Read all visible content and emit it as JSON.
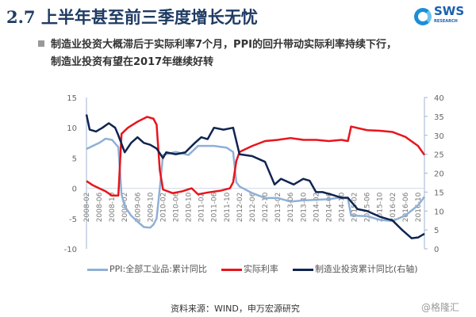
{
  "header": {
    "title": "2.7 上半年甚至前三季度增长无忧",
    "logo_text": "SWS",
    "logo_sub": "RESEARCH"
  },
  "bullet": {
    "line1": "制造业投资大概滞后于实际利率7个月，PPI的回升带动实际利率持续下行，",
    "line2": "制造业投资有望在2017年继续好转"
  },
  "footer": {
    "source": "资料来源：WIND，申万宏源研究",
    "watermark": "@格隆汇"
  },
  "chart_data": {
    "type": "line",
    "grid": false,
    "legend_position": "bottom",
    "y_left": {
      "range": [
        -10,
        15
      ],
      "ticks": [
        -10,
        -5,
        0,
        5,
        10,
        15
      ]
    },
    "y_right": {
      "range": [
        0,
        40
      ],
      "ticks": [
        0,
        5,
        10,
        15,
        20,
        25,
        30,
        35,
        40
      ]
    },
    "x_ticks": [
      "2008-02",
      "2008-06",
      "2008-10",
      "2009-02",
      "2009-06",
      "2009-10",
      "2010-02",
      "2010-06",
      "2010-10",
      "2011-02",
      "2011-06",
      "2011-10",
      "2012-02",
      "2012-06",
      "2012-10",
      "2013-02",
      "2013-06",
      "2013-10",
      "2014-02",
      "2014-06",
      "2014-10",
      "2015-02",
      "2015-06",
      "2015-10",
      "2016-02",
      "2016-06",
      "2016-10"
    ],
    "series": [
      {
        "name": "PPI:全部工业品:累计同比",
        "axis": "left",
        "color": "#8fb0d6",
        "points": [
          [
            "2008-02",
            6.5
          ],
          [
            "2008-06",
            7.5
          ],
          [
            "2008-08",
            8.2
          ],
          [
            "2008-10",
            8.0
          ],
          [
            "2008-12",
            6.8
          ],
          [
            "2009-01",
            -1
          ],
          [
            "2009-02",
            -3
          ],
          [
            "2009-04",
            -4.5
          ],
          [
            "2009-06",
            -5.5
          ],
          [
            "2009-08",
            -6.4
          ],
          [
            "2009-10",
            -6.5
          ],
          [
            "2009-11",
            -6
          ],
          [
            "2009-12",
            -5
          ],
          [
            "2010-01",
            0
          ],
          [
            "2010-02",
            5.5
          ],
          [
            "2010-06",
            6
          ],
          [
            "2010-10",
            5.5
          ],
          [
            "2011-01",
            7
          ],
          [
            "2011-06",
            7
          ],
          [
            "2011-10",
            6.7
          ],
          [
            "2011-12",
            6
          ],
          [
            "2012-01",
            1
          ],
          [
            "2012-02",
            0.3
          ],
          [
            "2012-06",
            -0.8
          ],
          [
            "2012-10",
            -1.6
          ],
          [
            "2013-02",
            -1.6
          ],
          [
            "2013-06",
            -2.2
          ],
          [
            "2013-10",
            -2
          ],
          [
            "2014-02",
            -1.9
          ],
          [
            "2014-06",
            -1.8
          ],
          [
            "2014-10",
            -1.5
          ],
          [
            "2014-12",
            -1.7
          ],
          [
            "2015-01",
            -4.5
          ],
          [
            "2015-06",
            -4.6
          ],
          [
            "2015-10",
            -5.2
          ],
          [
            "2016-02",
            -5.4
          ],
          [
            "2016-06",
            -4.5
          ],
          [
            "2016-10",
            -2.8
          ],
          [
            "2016-12",
            -1.4
          ]
        ]
      },
      {
        "name": "实际利率",
        "axis": "left",
        "color": "#e8141c",
        "points": [
          [
            "2008-02",
            1.2
          ],
          [
            "2008-04",
            0.5
          ],
          [
            "2008-08",
            -0.5
          ],
          [
            "2008-10",
            -1.2
          ],
          [
            "2008-12",
            -1.2
          ],
          [
            "2009-01",
            9
          ],
          [
            "2009-03",
            10
          ],
          [
            "2009-06",
            11
          ],
          [
            "2009-09",
            11.8
          ],
          [
            "2009-11",
            11.5
          ],
          [
            "2009-12",
            10.5
          ],
          [
            "2010-01",
            3
          ],
          [
            "2010-02",
            -0.2
          ],
          [
            "2010-05",
            -0.8
          ],
          [
            "2010-08",
            -0.5
          ],
          [
            "2010-11",
            0
          ],
          [
            "2011-01",
            -1
          ],
          [
            "2011-04",
            -0.7
          ],
          [
            "2011-08",
            -0.4
          ],
          [
            "2011-11",
            0
          ],
          [
            "2011-12",
            1
          ],
          [
            "2012-01",
            4.5
          ],
          [
            "2012-02",
            6
          ],
          [
            "2012-06",
            7
          ],
          [
            "2012-10",
            7.8
          ],
          [
            "2013-02",
            8
          ],
          [
            "2013-06",
            8.3
          ],
          [
            "2013-10",
            8
          ],
          [
            "2014-02",
            8
          ],
          [
            "2014-06",
            7.8
          ],
          [
            "2014-10",
            8
          ],
          [
            "2014-12",
            7.8
          ],
          [
            "2015-01",
            10.2
          ],
          [
            "2015-06",
            9.6
          ],
          [
            "2015-10",
            9.5
          ],
          [
            "2016-02",
            9.3
          ],
          [
            "2016-06",
            8.5
          ],
          [
            "2016-10",
            7
          ],
          [
            "2016-12",
            5.5
          ]
        ]
      },
      {
        "name": "制造业投资累计同比(右轴)",
        "axis": "right",
        "color": "#0f2450",
        "points": [
          [
            "2008-02",
            35.5
          ],
          [
            "2008-03",
            31.5
          ],
          [
            "2008-05",
            31
          ],
          [
            "2008-07",
            32
          ],
          [
            "2008-09",
            33.2
          ],
          [
            "2008-11",
            32
          ],
          [
            "2008-12",
            30
          ],
          [
            "2009-02",
            25.5
          ],
          [
            "2009-04",
            28
          ],
          [
            "2009-06",
            29.5
          ],
          [
            "2009-08",
            28
          ],
          [
            "2009-10",
            27.5
          ],
          [
            "2009-12",
            26.5
          ],
          [
            "2010-02",
            24
          ],
          [
            "2010-03",
            25.5
          ],
          [
            "2010-06",
            25
          ],
          [
            "2010-09",
            25.5
          ],
          [
            "2010-12",
            28
          ],
          [
            "2011-02",
            29.5
          ],
          [
            "2011-04",
            29
          ],
          [
            "2011-06",
            32
          ],
          [
            "2011-09",
            31.5
          ],
          [
            "2011-12",
            32
          ],
          [
            "2012-02",
            25
          ],
          [
            "2012-06",
            24.5
          ],
          [
            "2012-10",
            23
          ],
          [
            "2013-01",
            17
          ],
          [
            "2013-03",
            18.5
          ],
          [
            "2013-07",
            17
          ],
          [
            "2013-10",
            18.5
          ],
          [
            "2013-12",
            18
          ],
          [
            "2014-02",
            15
          ],
          [
            "2014-04",
            15
          ],
          [
            "2014-07",
            14.3
          ],
          [
            "2014-10",
            13.5
          ],
          [
            "2014-12",
            13.5
          ],
          [
            "2015-03",
            10.5
          ],
          [
            "2015-06",
            10
          ],
          [
            "2015-10",
            8.5
          ],
          [
            "2016-02",
            7.5
          ],
          [
            "2016-05",
            5
          ],
          [
            "2016-08",
            2.8
          ],
          [
            "2016-10",
            3
          ],
          [
            "2016-12",
            4
          ]
        ]
      }
    ]
  }
}
